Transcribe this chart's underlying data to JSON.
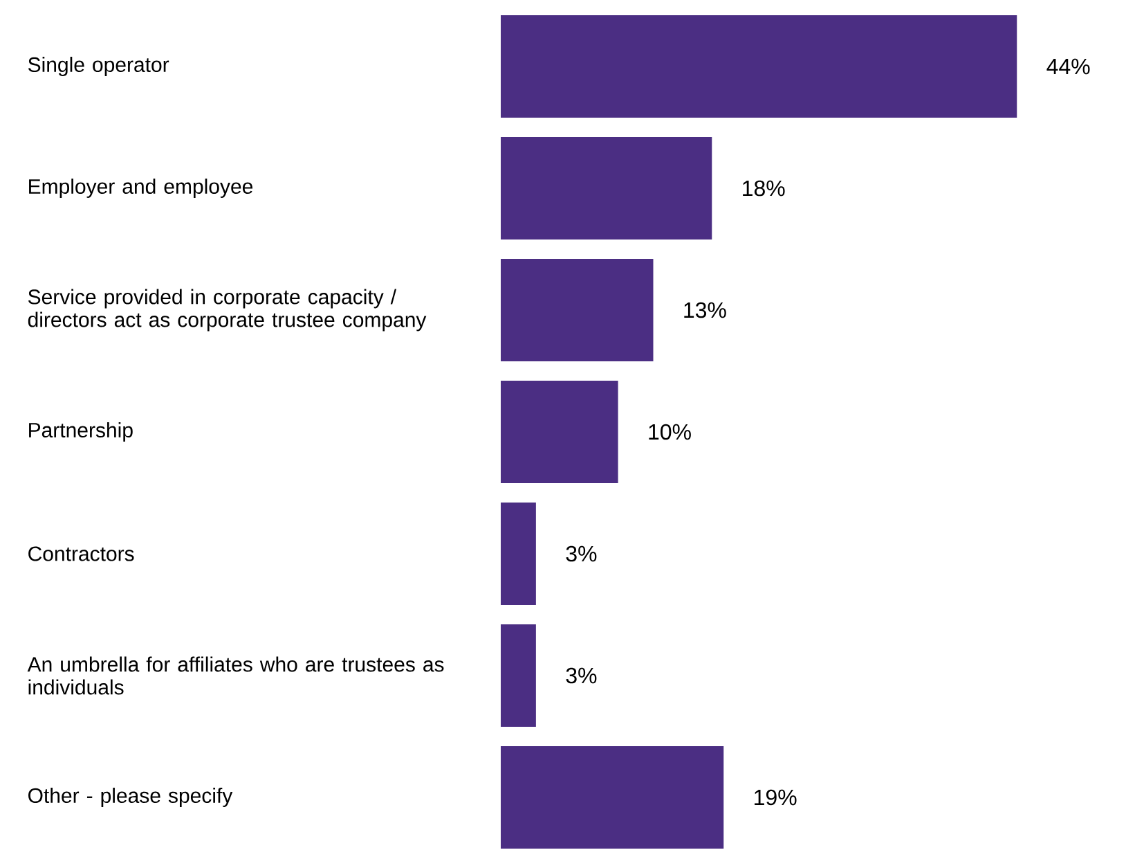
{
  "chart_data": {
    "type": "bar",
    "orientation": "horizontal",
    "categories": [
      "Single operator",
      "Employer and employee",
      "Service provided in corporate capacity / directors act as corporate trustee company",
      "Partnership",
      "Contractors",
      "An umbrella for affiliates who are trustees as individuals",
      "Other - please specify"
    ],
    "values": [
      44,
      18,
      13,
      10,
      3,
      3,
      19
    ],
    "value_labels": [
      "44%",
      "18%",
      "13%",
      "10%",
      "3%",
      "3%",
      "19%"
    ],
    "color": "#4b2e83"
  }
}
